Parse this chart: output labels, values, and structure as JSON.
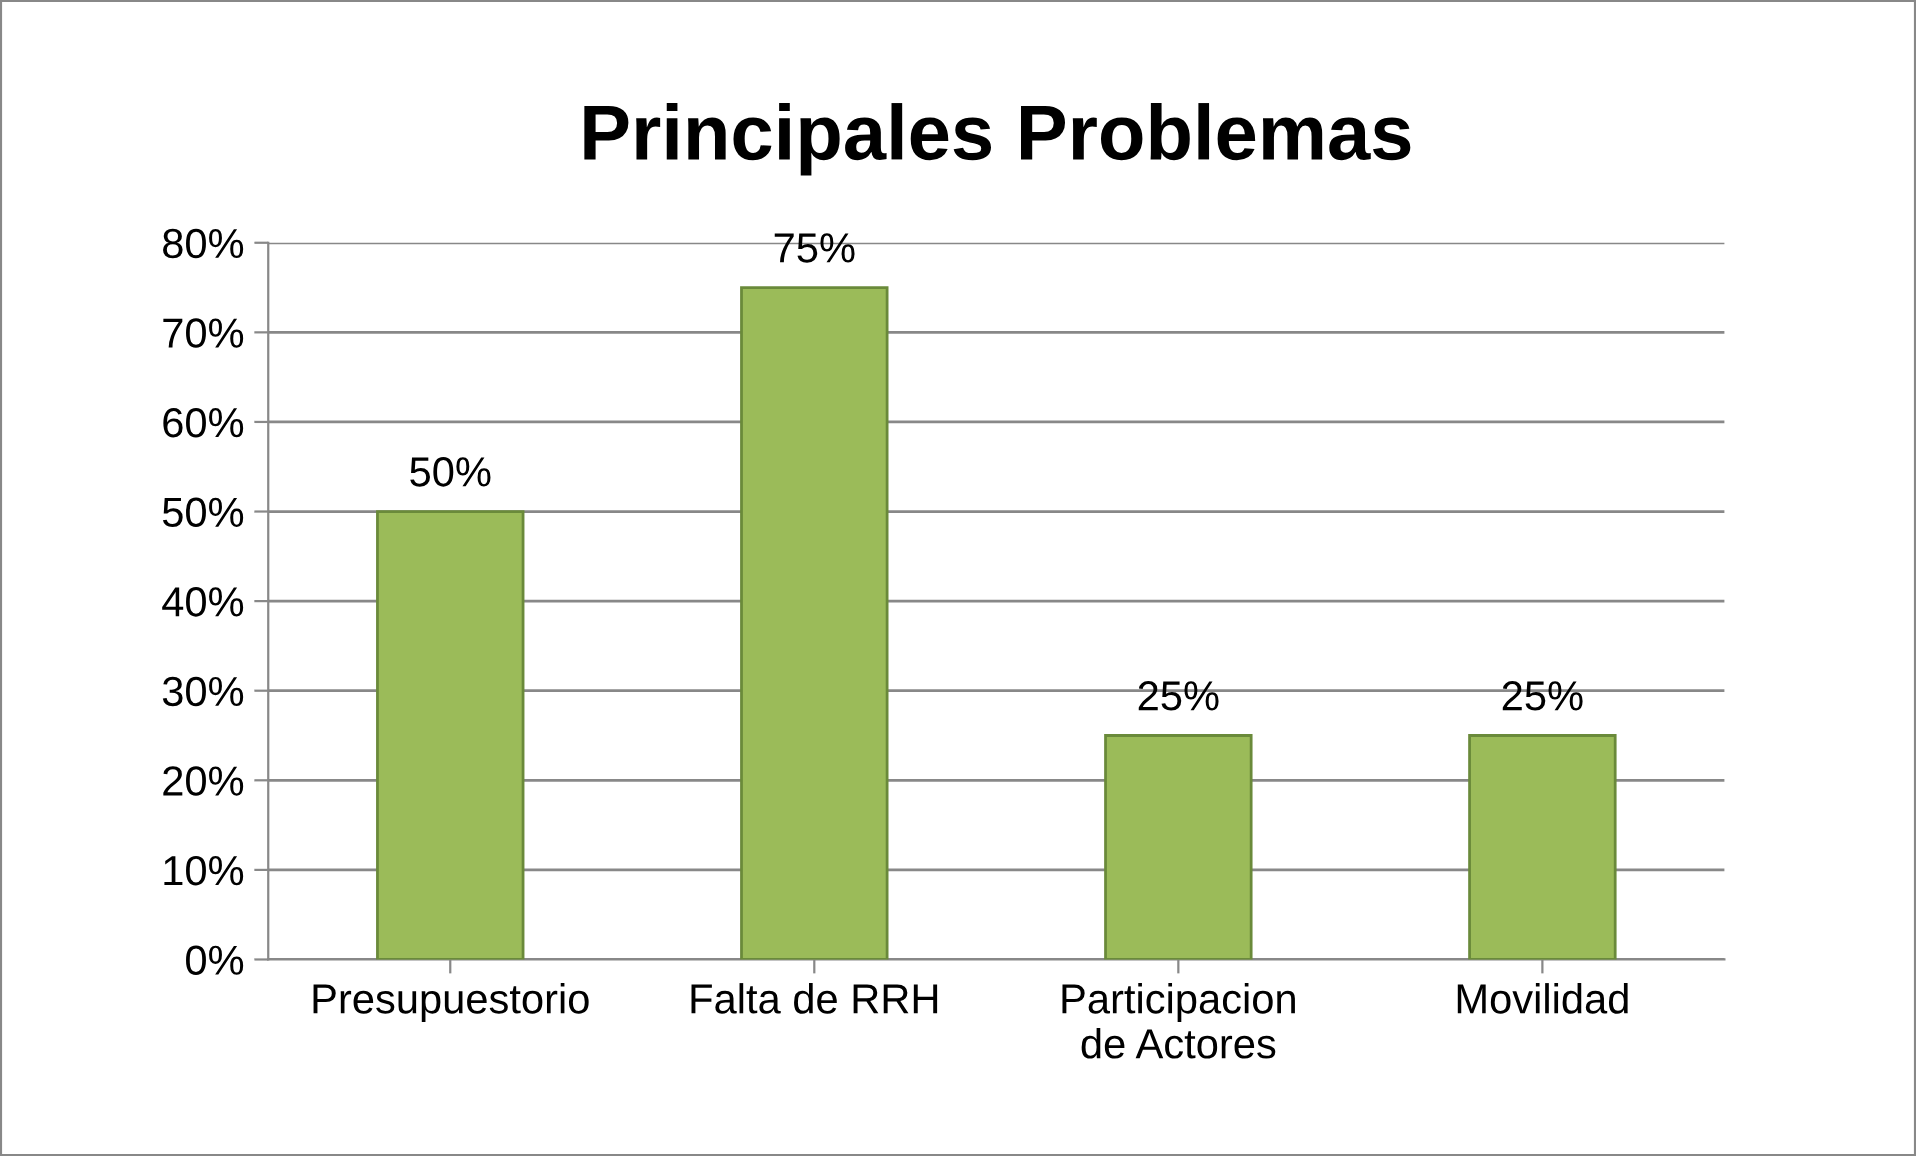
{
  "chart_data": {
    "type": "bar",
    "title": "Principales Problemas",
    "categories": [
      "Presupuestorio",
      "Falta de RRH",
      "Participacion\nde Actores",
      "Movilidad"
    ],
    "values": [
      50,
      75,
      25,
      25
    ],
    "color": "#9bbb59",
    "value_labels": [
      "50%",
      "75%",
      "25%",
      "25%"
    ],
    "ylim": [
      0,
      80
    ],
    "yticks": [
      {
        "value": 0,
        "label": "0%"
      },
      {
        "value": 10,
        "label": "10%"
      },
      {
        "value": 20,
        "label": "20%"
      },
      {
        "value": 30,
        "label": "30%"
      },
      {
        "value": 40,
        "label": "40%"
      },
      {
        "value": 50,
        "label": "50%"
      },
      {
        "value": 60,
        "label": "60%"
      },
      {
        "value": 70,
        "label": "70%"
      },
      {
        "value": 80,
        "label": "80%"
      }
    ],
    "grid": "y"
  }
}
